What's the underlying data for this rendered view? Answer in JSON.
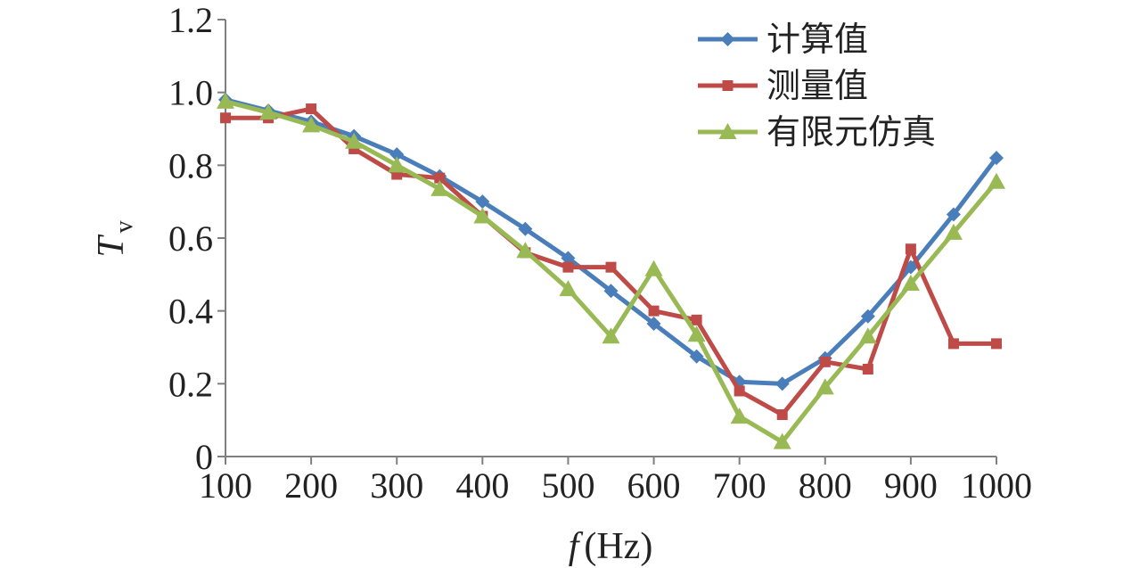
{
  "chart_data": {
    "type": "line",
    "xlabel_italic": "f",
    "xlabel_unit": "(Hz)",
    "ylabel_main": "T",
    "ylabel_sub": "v",
    "x": [
      100,
      150,
      200,
      250,
      300,
      350,
      400,
      450,
      500,
      550,
      600,
      650,
      700,
      750,
      800,
      850,
      900,
      950,
      1000
    ],
    "xlim": [
      100,
      1000
    ],
    "ylim": [
      0,
      1.2
    ],
    "xticks": [
      "100",
      "200",
      "300",
      "400",
      "500",
      "600",
      "700",
      "800",
      "900",
      "1000"
    ],
    "yticks": [
      "0",
      "0.2",
      "0.4",
      "0.6",
      "0.8",
      "1.0",
      "1.2"
    ],
    "legend_position": "top-right",
    "grid": false,
    "series": [
      {
        "name": "计算值",
        "color": "#4a7ebb",
        "marker": "diamond",
        "values": [
          0.98,
          0.95,
          0.92,
          0.88,
          0.83,
          0.77,
          0.7,
          0.625,
          0.545,
          0.455,
          0.365,
          0.275,
          0.205,
          0.2,
          0.27,
          0.385,
          0.52,
          0.665,
          0.82
        ]
      },
      {
        "name": "测量值",
        "color": "#be4b48",
        "marker": "square",
        "values": [
          0.93,
          0.93,
          0.955,
          0.845,
          0.775,
          0.765,
          0.66,
          0.56,
          0.52,
          0.52,
          0.4,
          0.375,
          0.18,
          0.115,
          0.26,
          0.24,
          0.57,
          0.31,
          0.31
        ]
      },
      {
        "name": "有限元仿真",
        "color": "#98b954",
        "marker": "triangle",
        "values": [
          0.975,
          0.945,
          0.91,
          0.865,
          0.8,
          0.735,
          0.66,
          0.565,
          0.46,
          0.33,
          0.515,
          0.335,
          0.11,
          0.04,
          0.19,
          0.33,
          0.475,
          0.615,
          0.755
        ]
      }
    ]
  }
}
